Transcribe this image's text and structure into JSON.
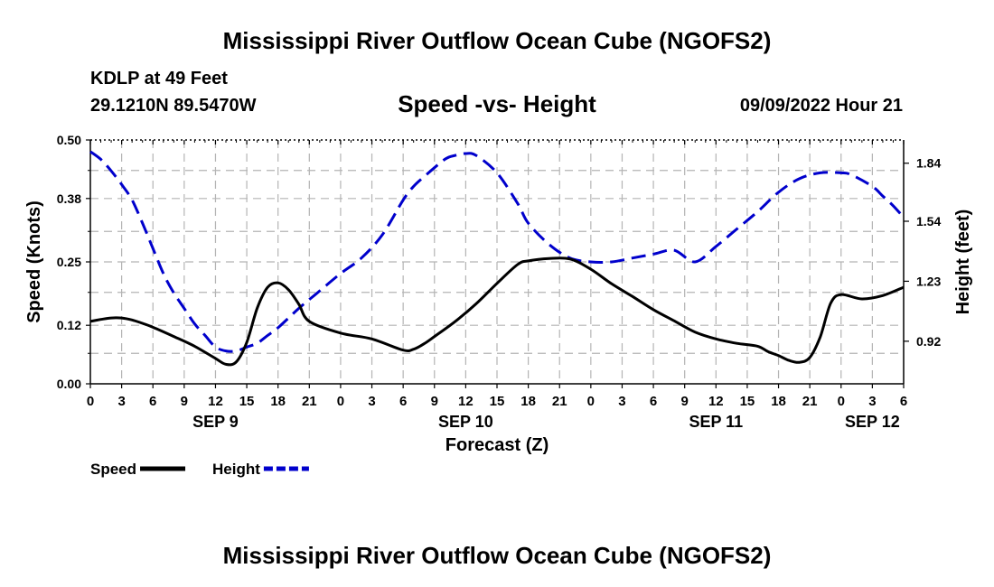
{
  "page": {
    "title_top": "Mississippi River Outflow Ocean Cube (NGOFS2)",
    "title_bottom": "Mississippi River Outflow Ocean Cube (NGOFS2)",
    "station": "KDLP at 49 Feet",
    "coordinates": "29.1210N  89.5470W",
    "subtitle": "Speed -vs- Height",
    "timestamp": "09/09/2022 Hour 21"
  },
  "chart_data": {
    "type": "line",
    "title": "Speed -vs- Height",
    "xlabel": "Forecast (Z)",
    "ylabel": "Speed (Knots)",
    "y2label": "Height (feet)",
    "xlim": [
      0,
      78
    ],
    "ylim": [
      0,
      0.5
    ],
    "y2lim": [
      0.7,
      1.96
    ],
    "x_ticks": [
      0,
      3,
      6,
      9,
      12,
      15,
      18,
      21,
      24,
      27,
      30,
      33,
      36,
      39,
      42,
      45,
      48,
      51,
      54,
      57,
      60,
      63,
      66,
      69,
      72,
      75,
      78
    ],
    "x_tick_labels": [
      "0",
      "3",
      "6",
      "9",
      "12",
      "15",
      "18",
      "21",
      "0",
      "3",
      "6",
      "9",
      "12",
      "15",
      "18",
      "21",
      "0",
      "3",
      "6",
      "9",
      "12",
      "15",
      "18",
      "21",
      "0",
      "3",
      "6"
    ],
    "day_labels": [
      {
        "x": 12,
        "label": "SEP 9"
      },
      {
        "x": 36,
        "label": "SEP 10"
      },
      {
        "x": 60,
        "label": "SEP 11"
      },
      {
        "x": 75,
        "label": "SEP 12"
      }
    ],
    "y_ticks": [
      0.0,
      0.12,
      0.25,
      0.38,
      0.5
    ],
    "y_tick_labels": [
      "0.00",
      "0.12",
      "0.25",
      "0.38",
      "0.50"
    ],
    "y2_ticks": [
      0.92,
      1.23,
      1.54,
      1.84
    ],
    "y2_tick_labels": [
      "0.92",
      "1.23",
      "1.54",
      "1.84"
    ],
    "grid": true,
    "series": [
      {
        "name": "Speed",
        "axis": "left",
        "color": "#000000",
        "style": "solid",
        "x": [
          0,
          1,
          2,
          3,
          4,
          5,
          6,
          8,
          10,
          12,
          13,
          14,
          15,
          16,
          17,
          18,
          19,
          20,
          21,
          24,
          27,
          30,
          31,
          32,
          33,
          35,
          37,
          39,
          41,
          42,
          44,
          46,
          48,
          50,
          52,
          54,
          56,
          58,
          60,
          62,
          64,
          65,
          66,
          67,
          68,
          69,
          70,
          71,
          72,
          74,
          76,
          78
        ],
        "values": [
          0.128,
          0.132,
          0.135,
          0.135,
          0.131,
          0.124,
          0.116,
          0.097,
          0.077,
          0.052,
          0.04,
          0.045,
          0.085,
          0.155,
          0.198,
          0.207,
          0.193,
          0.163,
          0.128,
          0.104,
          0.092,
          0.069,
          0.071,
          0.082,
          0.097,
          0.128,
          0.164,
          0.206,
          0.245,
          0.252,
          0.257,
          0.256,
          0.235,
          0.205,
          0.179,
          0.152,
          0.129,
          0.106,
          0.092,
          0.083,
          0.077,
          0.066,
          0.058,
          0.048,
          0.044,
          0.054,
          0.096,
          0.165,
          0.183,
          0.174,
          0.181,
          0.198
        ]
      },
      {
        "name": "Height",
        "axis": "right",
        "color": "#0000cc",
        "style": "dashed",
        "x": [
          0,
          1,
          2,
          3,
          4,
          5,
          6,
          7,
          8,
          9,
          10,
          11,
          12,
          13,
          14,
          15,
          16,
          17,
          18,
          20,
          22,
          24,
          26,
          28,
          30,
          31,
          32,
          34,
          35,
          36,
          37,
          39,
          41,
          42,
          44,
          46,
          48,
          50,
          52,
          54,
          56,
          58,
          60,
          62,
          64,
          66,
          68,
          70,
          72,
          73,
          75,
          76,
          77,
          78
        ],
        "values": [
          1.9,
          1.86,
          1.8,
          1.73,
          1.65,
          1.53,
          1.4,
          1.27,
          1.17,
          1.09,
          1.01,
          0.95,
          0.89,
          0.87,
          0.87,
          0.89,
          0.91,
          0.95,
          0.99,
          1.09,
          1.18,
          1.27,
          1.35,
          1.47,
          1.65,
          1.72,
          1.77,
          1.86,
          1.88,
          1.89,
          1.88,
          1.79,
          1.63,
          1.53,
          1.42,
          1.35,
          1.33,
          1.33,
          1.35,
          1.37,
          1.39,
          1.33,
          1.41,
          1.5,
          1.59,
          1.69,
          1.76,
          1.79,
          1.79,
          1.78,
          1.72,
          1.67,
          1.62,
          1.56
        ]
      }
    ],
    "legend": [
      {
        "label": "Speed",
        "color": "#000000",
        "style": "solid"
      },
      {
        "label": "Height",
        "color": "#0000cc",
        "style": "dashed"
      }
    ]
  }
}
